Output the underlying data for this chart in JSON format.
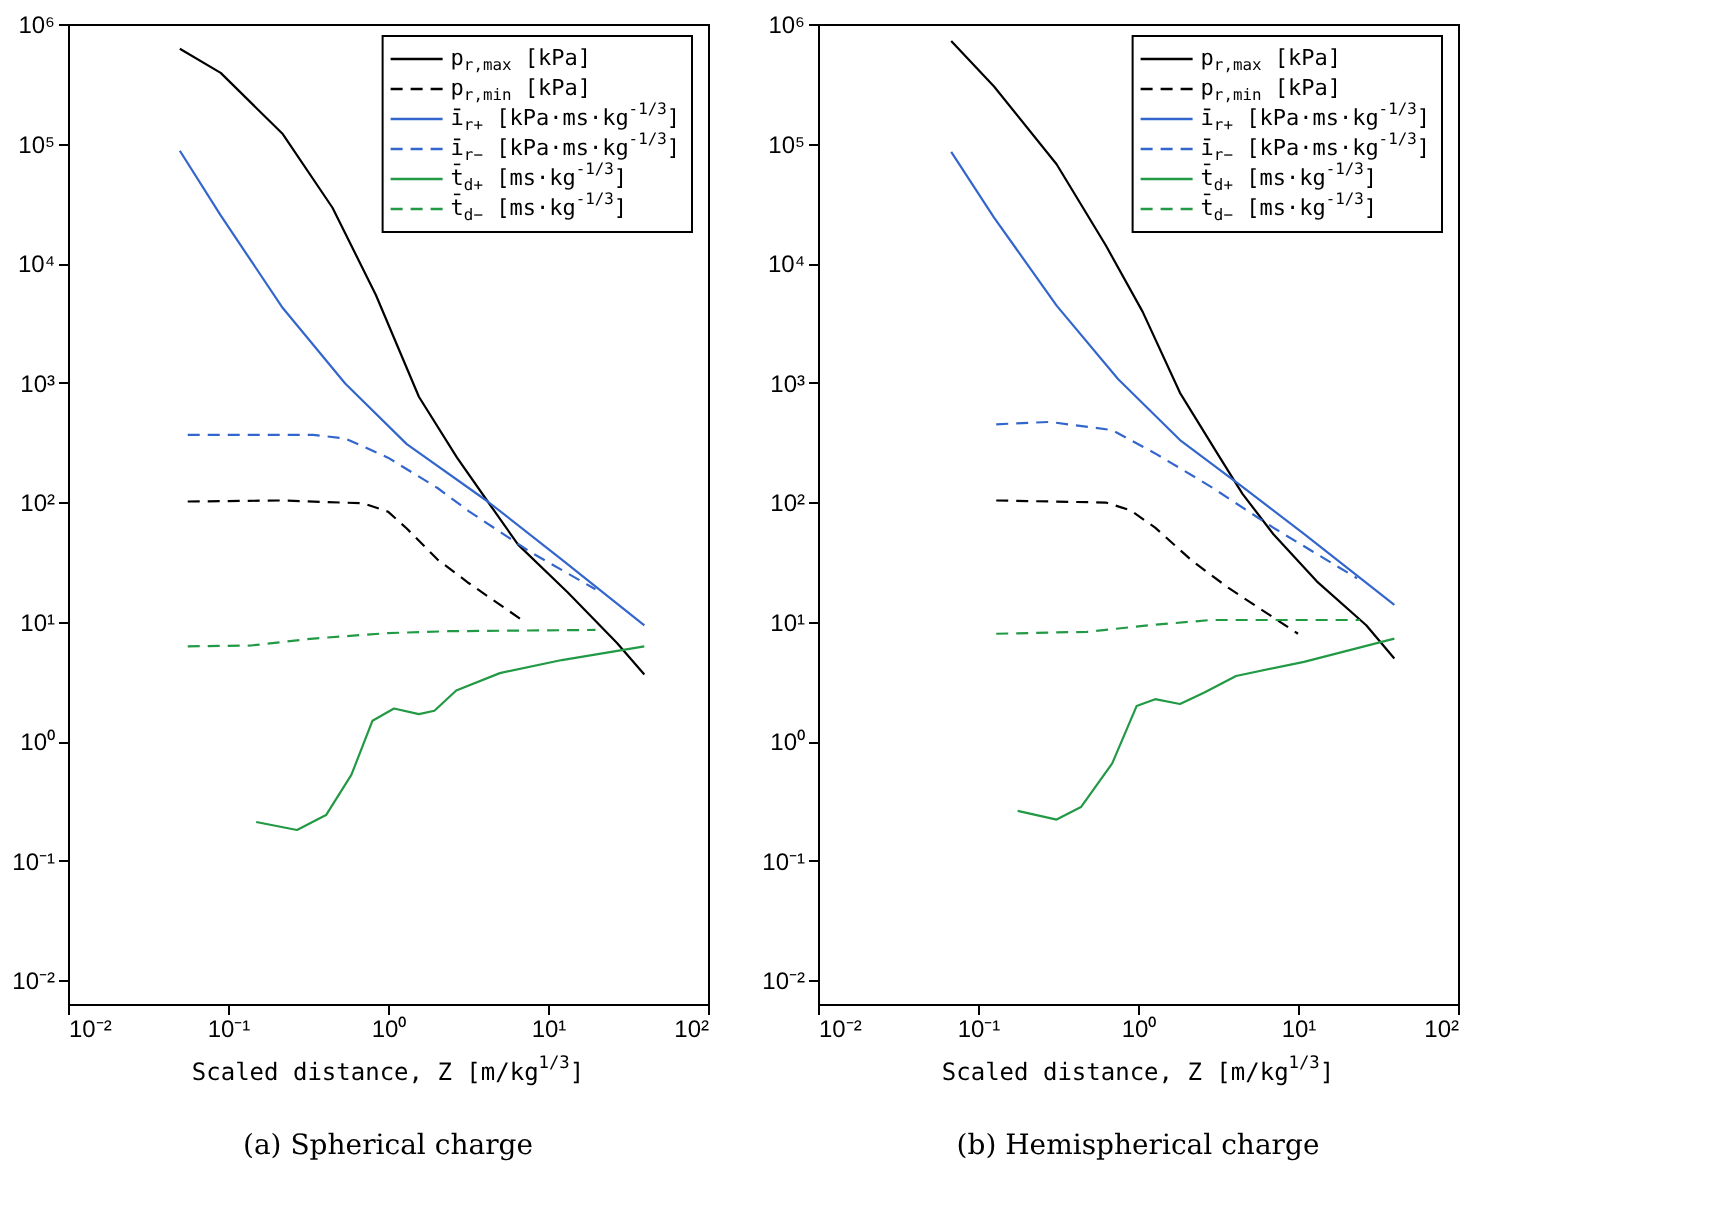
{
  "chart_data": [
    {
      "type": "line",
      "title": "(a) Spherical charge",
      "xlabel": "Scaled distance, Z [m/kg$^{1/3}$]",
      "log": "xy",
      "grid": false,
      "legend": "top right",
      "xlim": [
        0.01,
        100
      ],
      "ylim": [
        0.0063,
        1000000
      ],
      "xticks": [
        {
          "value": 0.01,
          "label": "10⁻²"
        },
        {
          "value": 0.1,
          "label": "10⁻¹"
        },
        {
          "value": 1,
          "label": "10⁰"
        },
        {
          "value": 10,
          "label": "10¹"
        },
        {
          "value": 100,
          "label": "10²"
        }
      ],
      "yticks": [
        {
          "value": 0.01,
          "label": "10⁻²"
        },
        {
          "value": 0.1,
          "label": "10⁻¹"
        },
        {
          "value": 1,
          "label": "10⁰"
        },
        {
          "value": 10,
          "label": "10¹"
        },
        {
          "value": 100,
          "label": "10²"
        },
        {
          "value": 1000,
          "label": "10³"
        },
        {
          "value": 10000,
          "label": "10⁴"
        },
        {
          "value": 100000,
          "label": "10⁵"
        },
        {
          "value": 1000000,
          "label": "10⁶"
        }
      ],
      "series": [
        {
          "name": "p$_{r,max}$ [kPa]",
          "color": "#000000",
          "line_style": "solid",
          "x": [
            0.05,
            0.09,
            0.22,
            0.45,
            0.84,
            1.56,
            2.7,
            4.2,
            6.5,
            13.3,
            27,
            40
          ],
          "values": [
            620000,
            390000,
            120000,
            29000,
            5400,
            760,
            235,
            101,
            44,
            17.5,
            6.6,
            3.6
          ]
        },
        {
          "name": "p$_{r,min}$ [kPa]",
          "color": "#000000",
          "line_style": "dashed",
          "x": [
            0.056,
            0.22,
            0.7,
            1.0,
            1.31,
            2.04,
            3.19,
            6.8
          ],
          "values": [
            101,
            103,
            97.5,
            83,
            60,
            33,
            21,
            10.4
          ]
        },
        {
          "name": "ī$_{r+}$ [kPa·ms·kg$^{-1/3}$]",
          "color": "#3366cc",
          "line_style": "solid",
          "x": [
            0.05,
            0.09,
            0.22,
            0.54,
            1.31,
            4.2,
            12.2,
            40
          ],
          "values": [
            87000,
            25000,
            4200,
            980,
            305,
            101,
            33,
            9.3
          ]
        },
        {
          "name": "ī$_{r−}$ [kPa·ms·kg$^{-1/3}$]",
          "color": "#3366cc",
          "line_style": "dashed",
          "x": [
            0.056,
            0.34,
            0.54,
            1.0,
            2.04,
            3.19,
            7.8,
            19.8
          ],
          "values": [
            365,
            365,
            340,
            235,
            131,
            84,
            38,
            18.6
          ]
        },
        {
          "name": "t̄$_{d+}$ [ms·kg$^{-1/3}$]",
          "color": "#229944",
          "line_style": "solid",
          "x": [
            0.15,
            0.27,
            0.41,
            0.59,
            0.8,
            1.09,
            1.56,
            1.95,
            2.67,
            5.0,
            12.2,
            40
          ],
          "values": [
            0.21,
            0.18,
            0.24,
            0.52,
            1.48,
            1.87,
            1.68,
            1.79,
            2.65,
            3.7,
            4.76,
            6.2
          ]
        },
        {
          "name": "t̄$_{d−}$ [ms·kg$^{-1/3}$]",
          "color": "#229944",
          "line_style": "dashed",
          "x": [
            0.056,
            0.14,
            0.34,
            1.0,
            2.4,
            19.8
          ],
          "values": [
            6.2,
            6.3,
            7.2,
            8.0,
            8.3,
            8.5
          ]
        }
      ]
    },
    {
      "type": "line",
      "title": "(b) Hemispherical charge",
      "xlabel": "Scaled distance, Z [m/kg$^{1/3}$]",
      "log": "xy",
      "grid": false,
      "legend": "top right",
      "xlim": [
        0.01,
        100
      ],
      "ylim": [
        0.0063,
        1000000
      ],
      "xticks": [
        {
          "value": 0.01,
          "label": "10⁻²"
        },
        {
          "value": 0.1,
          "label": "10⁻¹"
        },
        {
          "value": 1,
          "label": "10⁰"
        },
        {
          "value": 10,
          "label": "10¹"
        },
        {
          "value": 100,
          "label": "10²"
        }
      ],
      "yticks": [
        {
          "value": 0.01,
          "label": "10⁻²"
        },
        {
          "value": 0.1,
          "label": "10⁻¹"
        },
        {
          "value": 1,
          "label": "10⁰"
        },
        {
          "value": 10,
          "label": "10¹"
        },
        {
          "value": 100,
          "label": "10²"
        },
        {
          "value": 1000,
          "label": "10³"
        },
        {
          "value": 10000,
          "label": "10⁴"
        },
        {
          "value": 100000,
          "label": "10⁵"
        },
        {
          "value": 1000000,
          "label": "10⁶"
        }
      ],
      "series": [
        {
          "name": "p$_{r,max}$ [kPa]",
          "color": "#000000",
          "line_style": "solid",
          "x": [
            0.068,
            0.126,
            0.31,
            0.63,
            1.07,
            1.83,
            3.13,
            4.5,
            7.0,
            13.1,
            26.7,
            40
          ],
          "values": [
            720000,
            300000,
            67000,
            14000,
            3900,
            820,
            255,
            117,
            54,
            21.7,
            9.3,
            4.9
          ]
        },
        {
          "name": "p$_{r,min}$ [kPa]",
          "color": "#000000",
          "line_style": "dashed",
          "x": [
            0.13,
            0.63,
            0.9,
            1.28,
            2.19,
            3.7,
            10
          ],
          "values": [
            103,
            99,
            85,
            61,
            32,
            19,
            7.9
          ]
        },
        {
          "name": "ī$_{r+}$ [kPa·ms·kg$^{-1/3}$]",
          "color": "#3366cc",
          "line_style": "solid",
          "x": [
            0.068,
            0.126,
            0.31,
            0.75,
            1.83,
            4.5,
            10.9,
            40
          ],
          "values": [
            85000,
            24000,
            4400,
            1070,
            330,
            134,
            54,
            13.8
          ]
        },
        {
          "name": "ī$_{r−}$ [kPa·ms·kg$^{-1/3}$]",
          "color": "#3366cc",
          "line_style": "dashed",
          "x": [
            0.13,
            0.28,
            0.69,
            1.28,
            2.86,
            7.0,
            23.4
          ],
          "values": [
            447,
            468,
            400,
            255,
            134,
            61,
            23
          ]
        },
        {
          "name": "t̄$_{d+}$ [ms·kg$^{-1/3}$]",
          "color": "#229944",
          "line_style": "solid",
          "x": [
            0.177,
            0.31,
            0.44,
            0.69,
            0.98,
            1.28,
            1.83,
            2.6,
            4.1,
            10.9,
            40
          ],
          "values": [
            0.26,
            0.22,
            0.28,
            0.65,
            1.96,
            2.24,
            2.04,
            2.55,
            3.5,
            4.6,
            7.2
          ]
        },
        {
          "name": "t̄$_{d−}$ [ms·kg$^{-1/3}$]",
          "color": "#229944",
          "line_style": "dashed",
          "x": [
            0.13,
            0.48,
            1.17,
            2.86,
            24.4
          ],
          "values": [
            7.9,
            8.2,
            9.3,
            10.3,
            10.3
          ]
        }
      ]
    }
  ]
}
